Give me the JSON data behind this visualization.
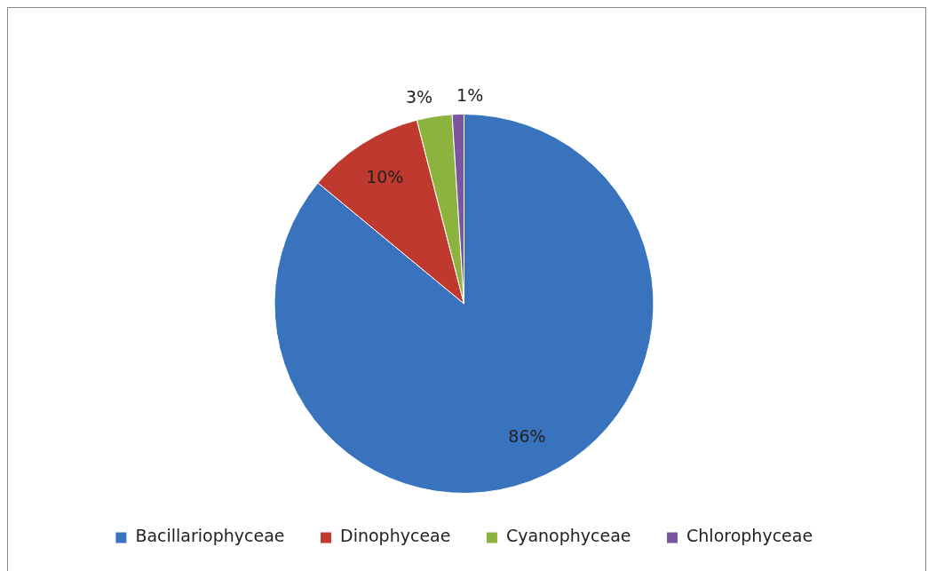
{
  "chart_data": {
    "type": "pie",
    "categories": [
      "Bacillariophyceae",
      "Dinophyceae",
      "Cyanophyceae",
      "Chlorophyceae"
    ],
    "values": [
      86,
      10,
      3,
      1
    ],
    "colors": [
      "#3a73bd",
      "#c0392f",
      "#8cb33e",
      "#7b56a0"
    ],
    "value_labels": [
      "86%",
      "10%",
      "3%",
      "1%"
    ],
    "legend": "bottom"
  }
}
